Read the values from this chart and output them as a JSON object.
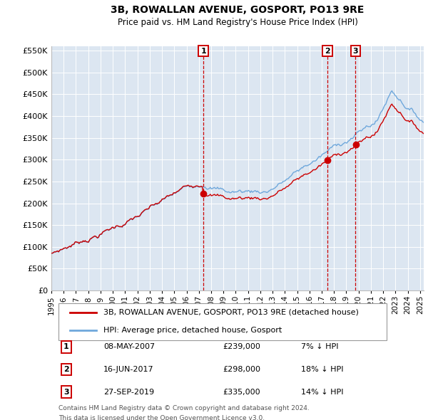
{
  "title": "3B, ROWALLAN AVENUE, GOSPORT, PO13 9RE",
  "subtitle": "Price paid vs. HM Land Registry's House Price Index (HPI)",
  "legend_line1": "3B, ROWALLAN AVENUE, GOSPORT, PO13 9RE (detached house)",
  "legend_line2": "HPI: Average price, detached house, Gosport",
  "footnote1": "Contains HM Land Registry data © Crown copyright and database right 2024.",
  "footnote2": "This data is licensed under the Open Government Licence v3.0.",
  "sales": [
    {
      "label": "1",
      "date": "08-MAY-2007",
      "price": "£239,000",
      "pct": "7% ↓ HPI",
      "x_year": 2007.37
    },
    {
      "label": "2",
      "date": "16-JUN-2017",
      "price": "£298,000",
      "pct": "18% ↓ HPI",
      "x_year": 2017.46
    },
    {
      "label": "3",
      "date": "27-SEP-2019",
      "price": "£335,000",
      "pct": "14% ↓ HPI",
      "x_year": 2019.75
    }
  ],
  "sale_prices_val": [
    239000,
    298000,
    335000
  ],
  "hpi_color": "#6fa8dc",
  "sale_color": "#cc0000",
  "vline_color": "#cc0000",
  "plot_bg": "#dce6f1",
  "ylim": [
    0,
    560000
  ],
  "xlim_start": 1995.0,
  "xlim_end": 2025.3,
  "yticks": [
    0,
    50000,
    100000,
    150000,
    200000,
    250000,
    300000,
    350000,
    400000,
    450000,
    500000,
    550000
  ],
  "xticks": [
    1995,
    1996,
    1997,
    1998,
    1999,
    2000,
    2001,
    2002,
    2003,
    2004,
    2005,
    2006,
    2007,
    2008,
    2009,
    2010,
    2011,
    2012,
    2013,
    2014,
    2015,
    2016,
    2017,
    2018,
    2019,
    2020,
    2021,
    2022,
    2023,
    2024,
    2025
  ]
}
